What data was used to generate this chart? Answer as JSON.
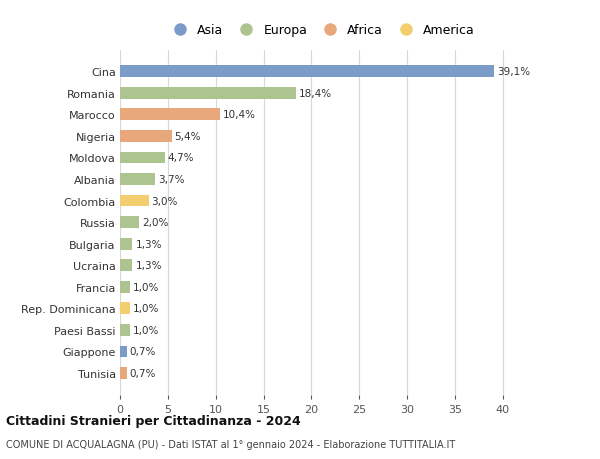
{
  "countries": [
    "Cina",
    "Romania",
    "Marocco",
    "Nigeria",
    "Moldova",
    "Albania",
    "Colombia",
    "Russia",
    "Bulgaria",
    "Ucraina",
    "Francia",
    "Rep. Dominicana",
    "Paesi Bassi",
    "Giappone",
    "Tunisia"
  ],
  "values": [
    39.1,
    18.4,
    10.4,
    5.4,
    4.7,
    3.7,
    3.0,
    2.0,
    1.3,
    1.3,
    1.0,
    1.0,
    1.0,
    0.7,
    0.7
  ],
  "labels": [
    "39,1%",
    "18,4%",
    "10,4%",
    "5,4%",
    "4,7%",
    "3,7%",
    "3,0%",
    "2,0%",
    "1,3%",
    "1,3%",
    "1,0%",
    "1,0%",
    "1,0%",
    "0,7%",
    "0,7%"
  ],
  "continents": [
    "Asia",
    "Europa",
    "Africa",
    "Africa",
    "Europa",
    "Europa",
    "America",
    "Europa",
    "Europa",
    "Europa",
    "Europa",
    "America",
    "Europa",
    "Asia",
    "Africa"
  ],
  "continent_colors": {
    "Asia": "#7b9cc8",
    "Europa": "#adc490",
    "Africa": "#e8a87c",
    "America": "#f2ce6e"
  },
  "legend_order": [
    "Asia",
    "Europa",
    "Africa",
    "America"
  ],
  "title_bold": "Cittadini Stranieri per Cittadinanza - 2024",
  "subtitle": "COMUNE DI ACQUALAGNA (PU) - Dati ISTAT al 1° gennaio 2024 - Elaborazione TUTTITALIA.IT",
  "xlim": [
    0,
    42
  ],
  "xticks": [
    0,
    5,
    10,
    15,
    20,
    25,
    30,
    35,
    40
  ],
  "background_color": "#ffffff",
  "grid_color": "#d8d8d8",
  "bar_height": 0.55
}
